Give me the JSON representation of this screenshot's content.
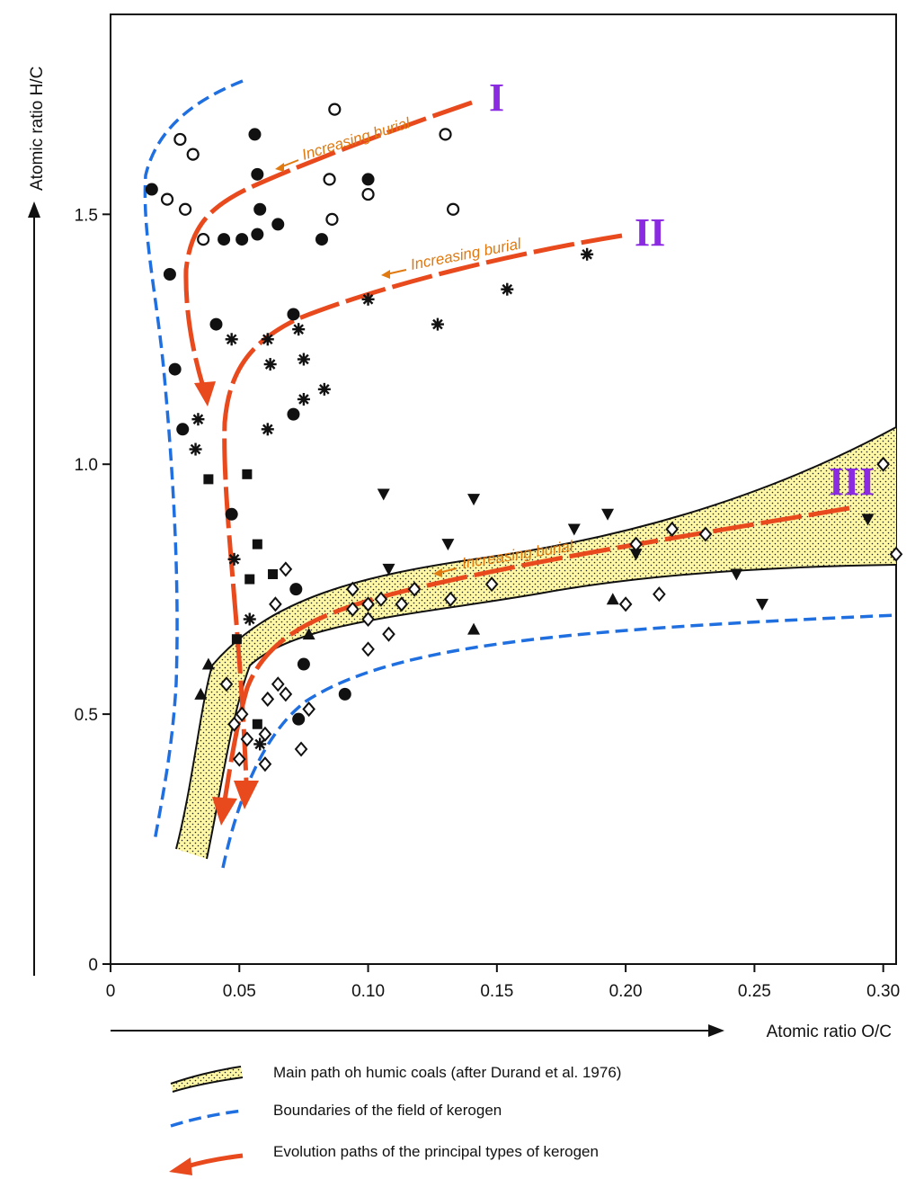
{
  "chart_data": {
    "type": "scatter",
    "xlabel": "Atomic ratio O/C",
    "ylabel": "Atomic ratio H/C",
    "xlim": [
      0,
      0.305
    ],
    "ylim": [
      0,
      1.9
    ],
    "x_ticks": [
      "0",
      "0.05",
      "0.10",
      "0.15",
      "0.20",
      "0.25",
      "0.30"
    ],
    "y_ticks": [
      "0",
      "0.5",
      "1.0",
      "1.5"
    ],
    "grid": false,
    "annotations": {
      "type_labels": [
        "I",
        "II",
        "III"
      ],
      "path_label": "Increasing burial"
    },
    "legend": [
      {
        "label": "Main path oh humic coals (after Durand et al. 1976)",
        "swatch": "humic-band"
      },
      {
        "label": "Boundaries of the field of kerogen",
        "swatch": "blue-dashed"
      },
      {
        "label": "Evolution paths of the principal types of kerogen",
        "swatch": "red-arrow"
      }
    ],
    "colors": {
      "evolution_path": "#e8491d",
      "boundary": "#1f6fe0",
      "humic_band": "#fdf7a6",
      "burial_text": "#e07a10",
      "type_label": "#8a2be2"
    },
    "series": [
      {
        "marker": "open-circle",
        "points": [
          [
            0.027,
            1.65
          ],
          [
            0.032,
            1.62
          ],
          [
            0.022,
            1.53
          ],
          [
            0.029,
            1.51
          ],
          [
            0.036,
            1.45
          ],
          [
            0.087,
            1.71
          ],
          [
            0.085,
            1.57
          ],
          [
            0.1,
            1.54
          ],
          [
            0.086,
            1.49
          ],
          [
            0.13,
            1.66
          ],
          [
            0.133,
            1.51
          ]
        ]
      },
      {
        "marker": "filled-circle",
        "points": [
          [
            0.016,
            1.55
          ],
          [
            0.023,
            1.38
          ],
          [
            0.025,
            1.19
          ],
          [
            0.028,
            1.07
          ],
          [
            0.041,
            1.28
          ],
          [
            0.044,
            1.45
          ],
          [
            0.051,
            1.45
          ],
          [
            0.057,
            1.46
          ],
          [
            0.058,
            1.51
          ],
          [
            0.057,
            1.58
          ],
          [
            0.056,
            1.66
          ],
          [
            0.065,
            1.48
          ],
          [
            0.082,
            1.45
          ],
          [
            0.1,
            1.57
          ],
          [
            0.071,
            1.3
          ],
          [
            0.071,
            1.1
          ],
          [
            0.047,
            0.9
          ],
          [
            0.072,
            0.75
          ],
          [
            0.075,
            0.6
          ],
          [
            0.073,
            0.49
          ],
          [
            0.091,
            0.54
          ]
        ]
      },
      {
        "marker": "asterisk",
        "points": [
          [
            0.034,
            1.09
          ],
          [
            0.033,
            1.03
          ],
          [
            0.047,
            1.25
          ],
          [
            0.061,
            1.25
          ],
          [
            0.062,
            1.2
          ],
          [
            0.073,
            1.27
          ],
          [
            0.075,
            1.21
          ],
          [
            0.075,
            1.13
          ],
          [
            0.083,
            1.15
          ],
          [
            0.061,
            1.07
          ],
          [
            0.1,
            1.33
          ],
          [
            0.127,
            1.28
          ],
          [
            0.154,
            1.35
          ],
          [
            0.185,
            1.42
          ],
          [
            0.048,
            0.81
          ],
          [
            0.054,
            0.69
          ],
          [
            0.058,
            0.44
          ]
        ]
      },
      {
        "marker": "filled-square",
        "points": [
          [
            0.038,
            0.97
          ],
          [
            0.053,
            0.98
          ],
          [
            0.057,
            0.84
          ],
          [
            0.054,
            0.77
          ],
          [
            0.063,
            0.78
          ],
          [
            0.049,
            0.65
          ],
          [
            0.057,
            0.48
          ]
        ]
      },
      {
        "marker": "filled-triangle-down",
        "points": [
          [
            0.106,
            0.94
          ],
          [
            0.141,
            0.93
          ],
          [
            0.108,
            0.79
          ],
          [
            0.131,
            0.84
          ],
          [
            0.18,
            0.87
          ],
          [
            0.193,
            0.9
          ],
          [
            0.204,
            0.82
          ],
          [
            0.243,
            0.78
          ],
          [
            0.253,
            0.72
          ],
          [
            0.294,
            0.89
          ]
        ]
      },
      {
        "marker": "filled-triangle-up",
        "points": [
          [
            0.038,
            0.6
          ],
          [
            0.035,
            0.54
          ],
          [
            0.077,
            0.66
          ],
          [
            0.141,
            0.67
          ],
          [
            0.195,
            0.73
          ]
        ]
      },
      {
        "marker": "open-diamond",
        "points": [
          [
            0.045,
            0.56
          ],
          [
            0.048,
            0.48
          ],
          [
            0.051,
            0.5
          ],
          [
            0.053,
            0.45
          ],
          [
            0.05,
            0.41
          ],
          [
            0.06,
            0.46
          ],
          [
            0.06,
            0.4
          ],
          [
            0.061,
            0.53
          ],
          [
            0.064,
            0.72
          ],
          [
            0.068,
            0.79
          ],
          [
            0.068,
            0.54
          ],
          [
            0.065,
            0.56
          ],
          [
            0.074,
            0.43
          ],
          [
            0.077,
            0.51
          ],
          [
            0.094,
            0.71
          ],
          [
            0.094,
            0.75
          ],
          [
            0.1,
            0.69
          ],
          [
            0.1,
            0.72
          ],
          [
            0.105,
            0.73
          ],
          [
            0.1,
            0.63
          ],
          [
            0.108,
            0.66
          ],
          [
            0.113,
            0.72
          ],
          [
            0.118,
            0.75
          ],
          [
            0.132,
            0.73
          ],
          [
            0.148,
            0.76
          ],
          [
            0.204,
            0.84
          ],
          [
            0.2,
            0.72
          ],
          [
            0.213,
            0.74
          ],
          [
            0.218,
            0.87
          ],
          [
            0.231,
            0.86
          ],
          [
            0.3,
            1.0
          ],
          [
            0.305,
            0.82
          ]
        ]
      }
    ]
  }
}
